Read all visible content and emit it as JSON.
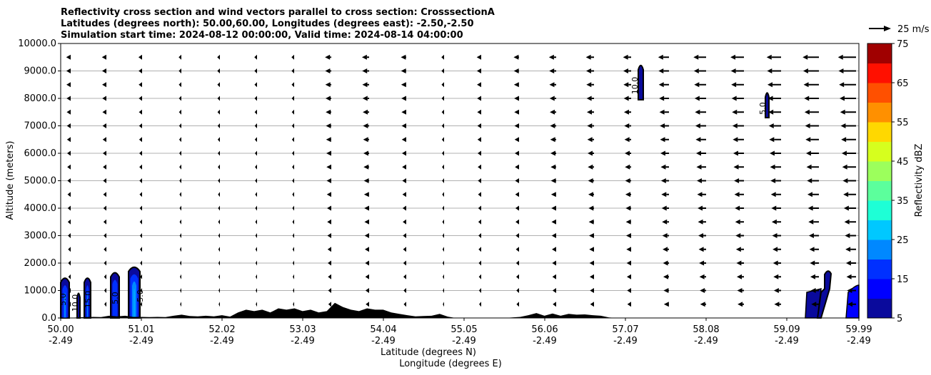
{
  "chart_data": {
    "type": "contour",
    "title_lines": [
      "Reflectivity cross section and wind vectors parallel to cross section: CrosssectionA",
      "Latitudes (degrees north): 50.00,60.00, Longitudes (degrees east): -2.50,-2.50",
      "Simulation start time: 2024-08-12 00:00:00, Valid time: 2024-08-14 04:00:00"
    ],
    "ylabel": "Altitude (meters)",
    "xlabel": "Latitude (degrees N)",
    "xlabel2": "Longitude (degrees E)",
    "ylim": [
      0,
      10000
    ],
    "xlim": [
      50.0,
      59.99
    ],
    "yticks": [
      "0.0",
      "1000.0",
      "2000.0",
      "3000.0",
      "4000.0",
      "5000.0",
      "6000.0",
      "7000.0",
      "8000.0",
      "9000.0",
      "10000.0"
    ],
    "xticks": [
      {
        "lat": "50.00",
        "lon": "-2.49"
      },
      {
        "lat": "51.01",
        "lon": "-2.49"
      },
      {
        "lat": "52.02",
        "lon": "-2.49"
      },
      {
        "lat": "53.03",
        "lon": "-2.49"
      },
      {
        "lat": "54.04",
        "lon": "-2.49"
      },
      {
        "lat": "55.05",
        "lon": "-2.49"
      },
      {
        "lat": "56.06",
        "lon": "-2.49"
      },
      {
        "lat": "57.07",
        "lon": "-2.49"
      },
      {
        "lat": "58.08",
        "lon": "-2.49"
      },
      {
        "lat": "59.09",
        "lon": "-2.49"
      },
      {
        "lat": "59.99",
        "lon": "-2.49"
      }
    ],
    "grid": "horizontal",
    "colorbar": {
      "label": "Reflectivity dBZ",
      "ticks": [
        "5",
        "15",
        "25",
        "35",
        "45",
        "55",
        "65",
        "75"
      ],
      "levels": [
        5,
        10,
        15,
        20,
        25,
        30,
        35,
        40,
        45,
        50,
        55,
        60,
        65,
        70,
        75
      ],
      "colors": [
        "#0a0a9c",
        "#0000ff",
        "#0030ff",
        "#0088ff",
        "#00c8ff",
        "#1effd6",
        "#5cff9c",
        "#9cff5c",
        "#d6ff1e",
        "#ffd800",
        "#ff9000",
        "#ff5000",
        "#ff1000",
        "#a00000"
      ]
    },
    "quiver_key": "25 m/s",
    "wind": {
      "direction": "westward",
      "rows_alt": [
        500,
        1000,
        1500,
        2000,
        2500,
        3000,
        3500,
        4000,
        4500,
        5000,
        5500,
        6000,
        6500,
        7000,
        7500,
        8000,
        8500,
        9000,
        9500
      ],
      "col_speed_ms": [
        5,
        5,
        4,
        3,
        3,
        3,
        3,
        7,
        8,
        6,
        3,
        5,
        6,
        8,
        9,
        9,
        12,
        14,
        15,
        16,
        18,
        20
      ]
    },
    "contour_labels": [
      "5.0",
      "10.0",
      "15.0",
      "5.0",
      "5.0",
      "10.0",
      "5.0"
    ],
    "terrain_m": [
      0,
      0,
      20,
      30,
      40,
      30,
      80,
      60,
      80,
      40,
      40,
      30,
      40,
      30,
      80,
      120,
      70,
      60,
      80,
      60,
      100,
      50,
      200,
      300,
      250,
      300,
      200,
      350,
      300,
      350,
      250,
      300,
      200,
      250,
      550,
      400,
      300,
      250,
      350,
      300,
      300,
      200,
      150,
      100,
      60,
      70,
      80,
      150,
      50,
      0,
      0,
      0,
      0,
      0,
      0,
      0,
      20,
      40,
      100,
      180,
      80,
      160,
      80,
      150,
      120,
      130,
      100,
      80,
      20,
      0,
      0,
      0,
      0,
      0,
      0,
      0,
      0,
      0,
      0,
      0,
      0,
      0,
      0,
      0,
      0,
      0,
      0,
      0,
      0,
      0,
      0,
      0,
      0,
      0,
      0,
      0,
      0,
      0,
      0,
      0
    ]
  }
}
